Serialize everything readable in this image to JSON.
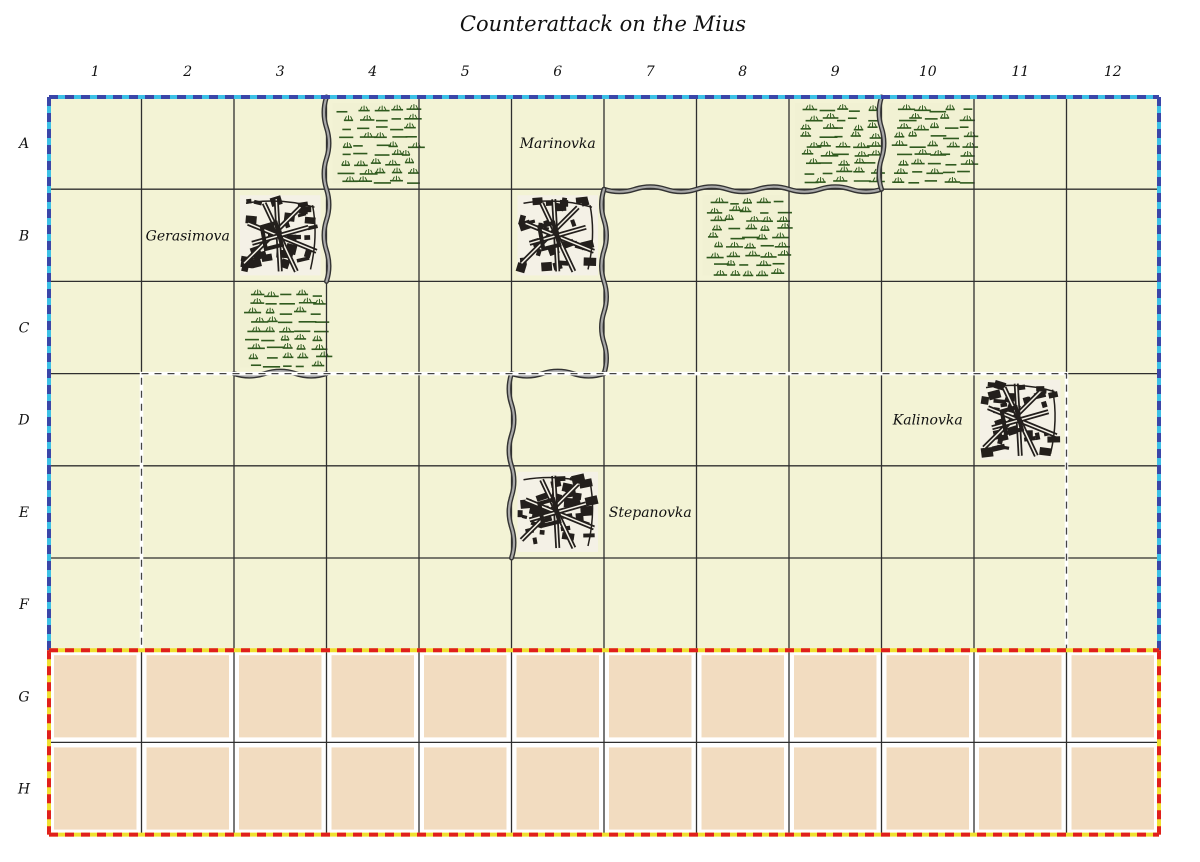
{
  "scenario": {
    "title": "Counterattack on the Mius"
  },
  "board": {
    "columns": [
      "1",
      "2",
      "3",
      "4",
      "5",
      "6",
      "7",
      "8",
      "9",
      "10",
      "11",
      "12"
    ],
    "rows": [
      "A",
      "B",
      "C",
      "D",
      "E",
      "F",
      "G",
      "H"
    ],
    "terrain_colors": {
      "open": "#f3f3d5",
      "sand": "#f2dcc0",
      "grid": "#2f2f2f",
      "border_blue": "#3a46a8",
      "border_cyan": "#3cc0e6",
      "border_red": "#e0201c",
      "border_yellow": "#f0e030",
      "river": "#8a8a8a",
      "town": "#231f1c",
      "marsh": "#2f5a1e"
    },
    "sand_rows": [
      "G",
      "H"
    ]
  },
  "terrain": [
    {
      "row": "A",
      "col": "4",
      "type": "marsh"
    },
    {
      "row": "A",
      "col": "9",
      "type": "marsh"
    },
    {
      "row": "A",
      "col": "10",
      "type": "marsh"
    },
    {
      "row": "B",
      "col": "3",
      "type": "town"
    },
    {
      "row": "B",
      "col": "6",
      "type": "town"
    },
    {
      "row": "B",
      "col": "8",
      "type": "marsh"
    },
    {
      "row": "C",
      "col": "3",
      "type": "marsh"
    },
    {
      "row": "D",
      "col": "11",
      "type": "town"
    },
    {
      "row": "E",
      "col": "6",
      "type": "town"
    }
  ],
  "places": [
    {
      "name": "Marinovka",
      "row": "A",
      "col": "6"
    },
    {
      "name": "Gerasimova",
      "row": "B",
      "col": "2"
    },
    {
      "name": "Kalinovka",
      "row": "D",
      "col": "10"
    },
    {
      "name": "Stepanovka",
      "row": "E",
      "col": "7"
    }
  ],
  "rivers": [
    {
      "from": [
        3,
        0
      ],
      "to": [
        3,
        2
      ],
      "edge": "v"
    },
    {
      "from": [
        2,
        3
      ],
      "to": [
        3,
        3
      ],
      "edge": "h"
    },
    {
      "from": [
        6,
        1
      ],
      "to": [
        9,
        1
      ],
      "edge": "h"
    },
    {
      "from": [
        9,
        0
      ],
      "to": [
        9,
        1
      ],
      "edge": "v"
    },
    {
      "from": [
        6,
        1
      ],
      "to": [
        6,
        3
      ],
      "edge": "v"
    },
    {
      "from": [
        5,
        3
      ],
      "to": [
        6,
        3
      ],
      "edge": "h"
    },
    {
      "from": [
        5,
        3
      ],
      "to": [
        5,
        5
      ],
      "edge": "v"
    }
  ],
  "deploy_zone": {
    "style": "dashed",
    "color": "#ffffff",
    "from": [
      1,
      3
    ],
    "to": [
      11,
      6
    ]
  }
}
